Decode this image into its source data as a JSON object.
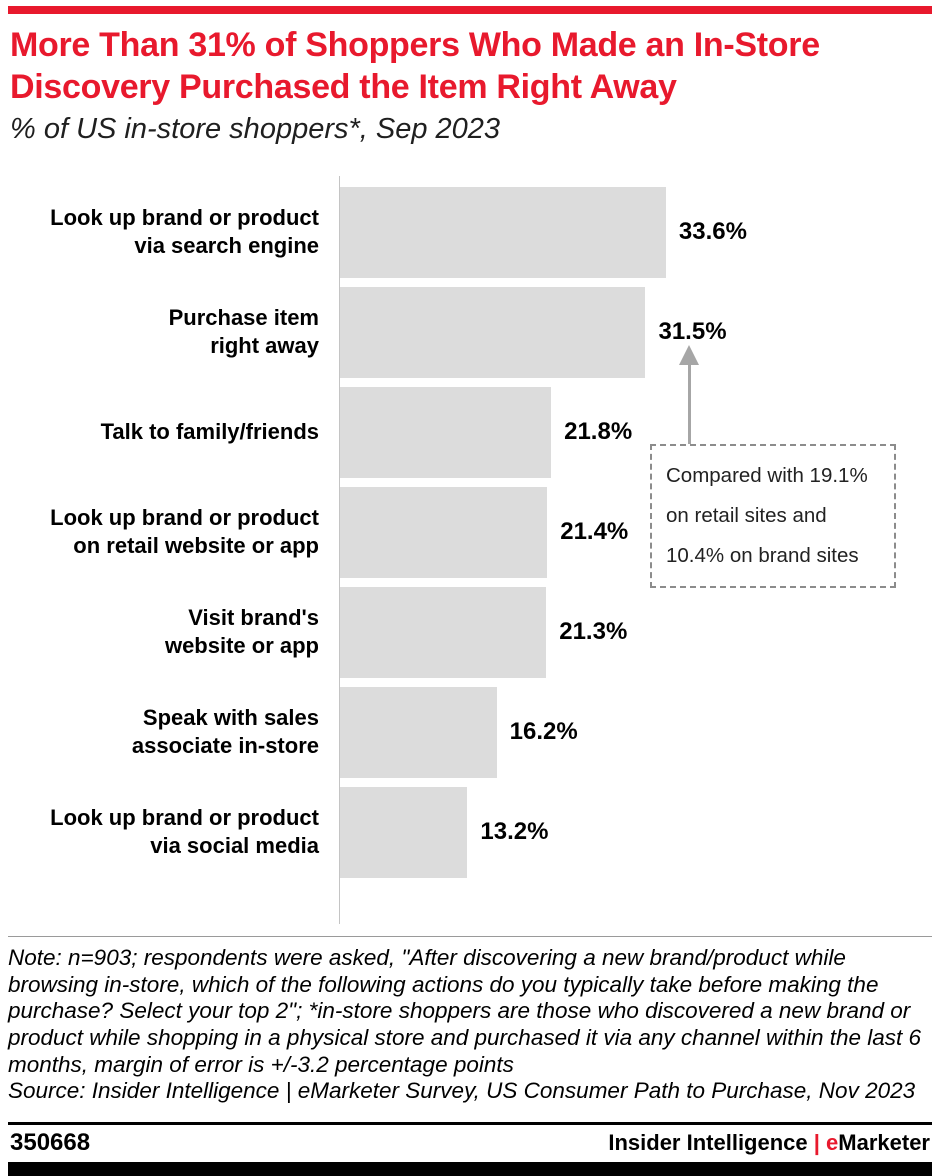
{
  "colors": {
    "accent_red": "#e8192d",
    "bar_gray": "#dcdcdc",
    "axis_gray": "#c4c4c4",
    "annot_gray": "#8c8c8c",
    "arrow_gray": "#a6a6a6"
  },
  "header": {
    "title": "More Than 31% of Shoppers Who Made an In-Store Discovery Purchased the Item Right Away",
    "subtitle": "% of US in-store shoppers*, Sep 2023"
  },
  "chart_data": {
    "type": "bar",
    "orientation": "horizontal",
    "title": "More Than 31% of Shoppers Who Made an In-Store Discovery Purchased the Item Right Away",
    "subtitle": "% of US in-store shoppers*, Sep 2023",
    "categories": [
      "Look up brand or product\nvia search engine",
      "Purchase item\nright away",
      "Talk to family/friends",
      "Look up brand or product\non retail website or app",
      "Visit brand's\nwebsite or app",
      "Speak with sales\nassociate in-store",
      "Look up brand or product\nvia social media"
    ],
    "values": [
      33.6,
      31.5,
      21.8,
      21.4,
      21.3,
      16.2,
      13.2
    ],
    "value_labels": [
      "33.6%",
      "31.5%",
      "21.8%",
      "21.4%",
      "21.3%",
      "16.2%",
      "13.2%"
    ],
    "xlim": [
      0,
      40
    ],
    "grid": false,
    "legend": false,
    "bar_color": "#dcdcdc",
    "annotation": {
      "lines": [
        "Compared with 19.1%",
        "on retail sites and",
        "10.4% on brand sites"
      ],
      "points_to": "31.5% bar (Purchase item right away)"
    }
  },
  "notes": {
    "note": "Note: n=903; respondents were asked, \"After discovering a new brand/product while browsing in-store, which of the following actions do you typically take before making the purchase? Select your top 2\"; *in-store shoppers are those who discovered a new brand or product while shopping in a physical store and purchased it via any channel within the last 6 months, margin of error is +/-3.2 percentage points",
    "source": "Source: Insider Intelligence | eMarketer Survey, US Consumer Path to Purchase, Nov 2023"
  },
  "footer": {
    "chart_id": "350668",
    "brand_primary": "Insider Intelligence ",
    "brand_separator": "|",
    "brand_e": "e",
    "brand_rest": "Marketer"
  }
}
